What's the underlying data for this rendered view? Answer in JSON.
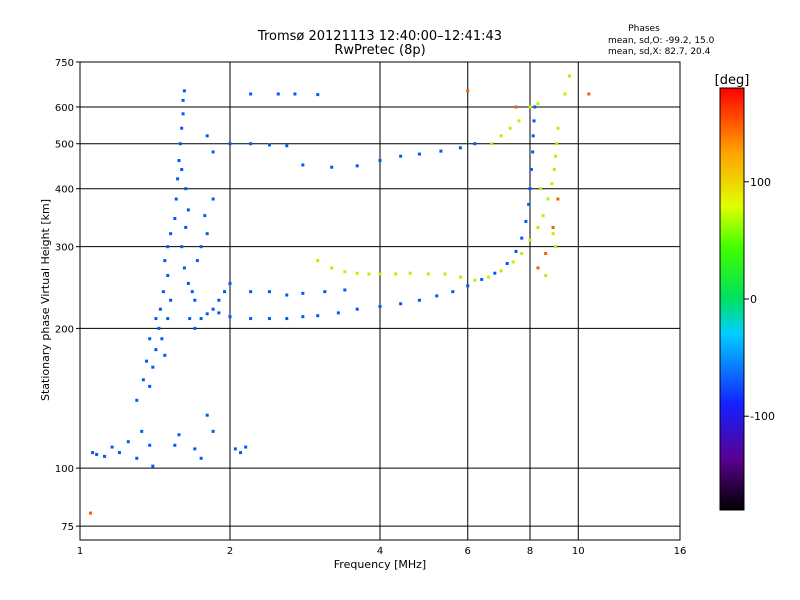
{
  "chart_data": {
    "type": "scatter",
    "title_line1": "Tromsø 20121113 12:40:00–12:41:43",
    "title_line2": "RwPretec (8p)",
    "xlabel": "Frequency [MHz]",
    "ylabel": "Stationary phase Virtual Height [km]",
    "x_scale": "log",
    "y_scale": "log",
    "xlim": [
      1,
      16
    ],
    "ylim": [
      70,
      750
    ],
    "x_ticks": [
      1,
      2,
      4,
      6,
      8,
      10,
      16
    ],
    "y_ticks": [
      75,
      100,
      200,
      300,
      400,
      500,
      600,
      750
    ],
    "grid": true,
    "legend": {
      "title": "Phases",
      "lines": [
        "mean, sd,O: -99.2, 15.0",
        "mean, sd,X:  82.7, 20.4"
      ],
      "placement": "top-right"
    },
    "colorbar": {
      "label": "[deg]",
      "ticks": [
        100,
        0,
        -100
      ],
      "range": [
        -180,
        180
      ],
      "placement": "right"
    },
    "series": [
      {
        "color_deg": -100,
        "points": [
          [
            1.06,
            108
          ],
          [
            1.08,
            107
          ],
          [
            1.12,
            106
          ],
          [
            1.16,
            111
          ],
          [
            1.2,
            108
          ],
          [
            1.25,
            114
          ],
          [
            1.3,
            105
          ],
          [
            1.33,
            120
          ],
          [
            1.38,
            112
          ],
          [
            1.4,
            101
          ],
          [
            1.3,
            140
          ],
          [
            1.34,
            155
          ],
          [
            1.36,
            170
          ],
          [
            1.38,
            150
          ],
          [
            1.4,
            165
          ],
          [
            1.42,
            180
          ],
          [
            1.44,
            200
          ],
          [
            1.46,
            190
          ],
          [
            1.48,
            175
          ],
          [
            1.5,
            210
          ],
          [
            1.38,
            190
          ],
          [
            1.42,
            210
          ],
          [
            1.45,
            220
          ],
          [
            1.47,
            240
          ],
          [
            1.5,
            260
          ],
          [
            1.52,
            230
          ],
          [
            1.48,
            280
          ],
          [
            1.5,
            300
          ],
          [
            1.52,
            320
          ],
          [
            1.55,
            345
          ],
          [
            1.56,
            380
          ],
          [
            1.57,
            420
          ],
          [
            1.58,
            460
          ],
          [
            1.59,
            500
          ],
          [
            1.6,
            540
          ],
          [
            1.61,
            580
          ],
          [
            1.61,
            620
          ],
          [
            1.62,
            650
          ],
          [
            1.6,
            440
          ],
          [
            1.63,
            400
          ],
          [
            1.6,
            300
          ],
          [
            1.63,
            330
          ],
          [
            1.65,
            360
          ],
          [
            1.62,
            270
          ],
          [
            1.65,
            250
          ],
          [
            1.68,
            240
          ],
          [
            1.7,
            230
          ],
          [
            1.72,
            280
          ],
          [
            1.75,
            300
          ],
          [
            1.8,
            320
          ],
          [
            1.66,
            210
          ],
          [
            1.7,
            200
          ],
          [
            1.75,
            210
          ],
          [
            1.8,
            215
          ],
          [
            1.85,
            220
          ],
          [
            1.9,
            230
          ],
          [
            1.95,
            240
          ],
          [
            2.0,
            250
          ],
          [
            1.78,
            350
          ],
          [
            1.85,
            380
          ],
          [
            1.9,
            216
          ],
          [
            2.0,
            212
          ],
          [
            2.2,
            210
          ],
          [
            2.4,
            210
          ],
          [
            2.6,
            210
          ],
          [
            2.8,
            212
          ],
          [
            3.0,
            213
          ],
          [
            3.3,
            216
          ],
          [
            3.6,
            220
          ],
          [
            4.0,
            223
          ],
          [
            4.4,
            226
          ],
          [
            4.8,
            230
          ],
          [
            5.2,
            235
          ],
          [
            5.6,
            240
          ],
          [
            6.0,
            247
          ],
          [
            6.4,
            255
          ],
          [
            6.8,
            263
          ],
          [
            7.2,
            276
          ],
          [
            7.5,
            293
          ],
          [
            7.7,
            313
          ],
          [
            7.85,
            340
          ],
          [
            7.95,
            370
          ],
          [
            8.0,
            400
          ],
          [
            8.05,
            440
          ],
          [
            8.1,
            480
          ],
          [
            8.12,
            520
          ],
          [
            8.15,
            560
          ],
          [
            8.18,
            600
          ],
          [
            2.2,
            500
          ],
          [
            2.4,
            497
          ],
          [
            2.6,
            495
          ],
          [
            2.8,
            450
          ],
          [
            3.2,
            445
          ],
          [
            3.6,
            448
          ],
          [
            4.0,
            460
          ],
          [
            4.4,
            470
          ],
          [
            4.8,
            475
          ],
          [
            5.3,
            482
          ],
          [
            5.8,
            490
          ],
          [
            6.2,
            500
          ],
          [
            1.8,
            520
          ],
          [
            1.85,
            480
          ],
          [
            2.0,
            500
          ],
          [
            2.2,
            640
          ],
          [
            2.5,
            640
          ],
          [
            2.7,
            640
          ],
          [
            3.0,
            638
          ],
          [
            2.2,
            240
          ],
          [
            2.4,
            240
          ],
          [
            2.6,
            236
          ],
          [
            2.8,
            238
          ],
          [
            3.1,
            240
          ],
          [
            3.4,
            242
          ],
          [
            2.05,
            110
          ],
          [
            2.1,
            108
          ],
          [
            2.15,
            111
          ],
          [
            1.8,
            130
          ],
          [
            1.85,
            120
          ],
          [
            1.7,
            110
          ],
          [
            1.75,
            105
          ],
          [
            1.55,
            112
          ],
          [
            1.58,
            118
          ]
        ]
      },
      {
        "color_deg": 82,
        "points": [
          [
            3.0,
            280
          ],
          [
            3.2,
            270
          ],
          [
            3.4,
            265
          ],
          [
            3.6,
            263
          ],
          [
            3.8,
            262
          ],
          [
            4.0,
            262
          ],
          [
            4.3,
            262
          ],
          [
            4.6,
            263
          ],
          [
            5.0,
            262
          ],
          [
            5.4,
            262
          ],
          [
            5.8,
            258
          ],
          [
            6.2,
            254
          ],
          [
            6.6,
            258
          ],
          [
            7.0,
            266
          ],
          [
            7.4,
            278
          ],
          [
            7.7,
            290
          ],
          [
            8.0,
            310
          ],
          [
            8.3,
            330
          ],
          [
            8.5,
            350
          ],
          [
            8.7,
            380
          ],
          [
            8.85,
            410
          ],
          [
            8.95,
            440
          ],
          [
            9.0,
            470
          ],
          [
            9.05,
            500
          ],
          [
            9.1,
            540
          ],
          [
            8.6,
            260
          ],
          [
            8.9,
            320
          ],
          [
            9.0,
            300
          ],
          [
            8.4,
            400
          ],
          [
            6.7,
            500
          ],
          [
            7.0,
            520
          ],
          [
            7.3,
            540
          ],
          [
            7.6,
            560
          ],
          [
            8.0,
            600
          ],
          [
            8.3,
            610
          ],
          [
            9.6,
            700
          ],
          [
            9.4,
            640
          ]
        ]
      },
      {
        "color_deg": 150,
        "points": [
          [
            8.3,
            270
          ],
          [
            8.6,
            290
          ],
          [
            8.9,
            330
          ],
          [
            9.1,
            380
          ],
          [
            10.5,
            640
          ],
          [
            7.5,
            600
          ],
          [
            6.0,
            650
          ],
          [
            1.05,
            80
          ]
        ]
      }
    ]
  }
}
